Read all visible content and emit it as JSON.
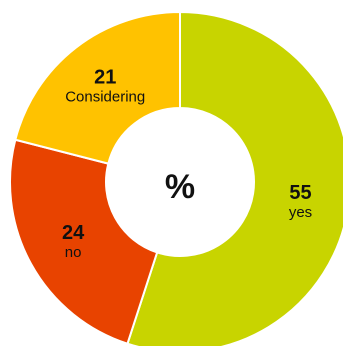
{
  "chart_data": {
    "type": "pie",
    "title": "",
    "center_label": "%",
    "slices": [
      {
        "label": "yes",
        "value": 55,
        "color": "#C8D400"
      },
      {
        "label": "no",
        "value": 24,
        "color": "#E84300"
      },
      {
        "label": "Considering",
        "value": 21,
        "color": "#FFC200"
      }
    ]
  }
}
